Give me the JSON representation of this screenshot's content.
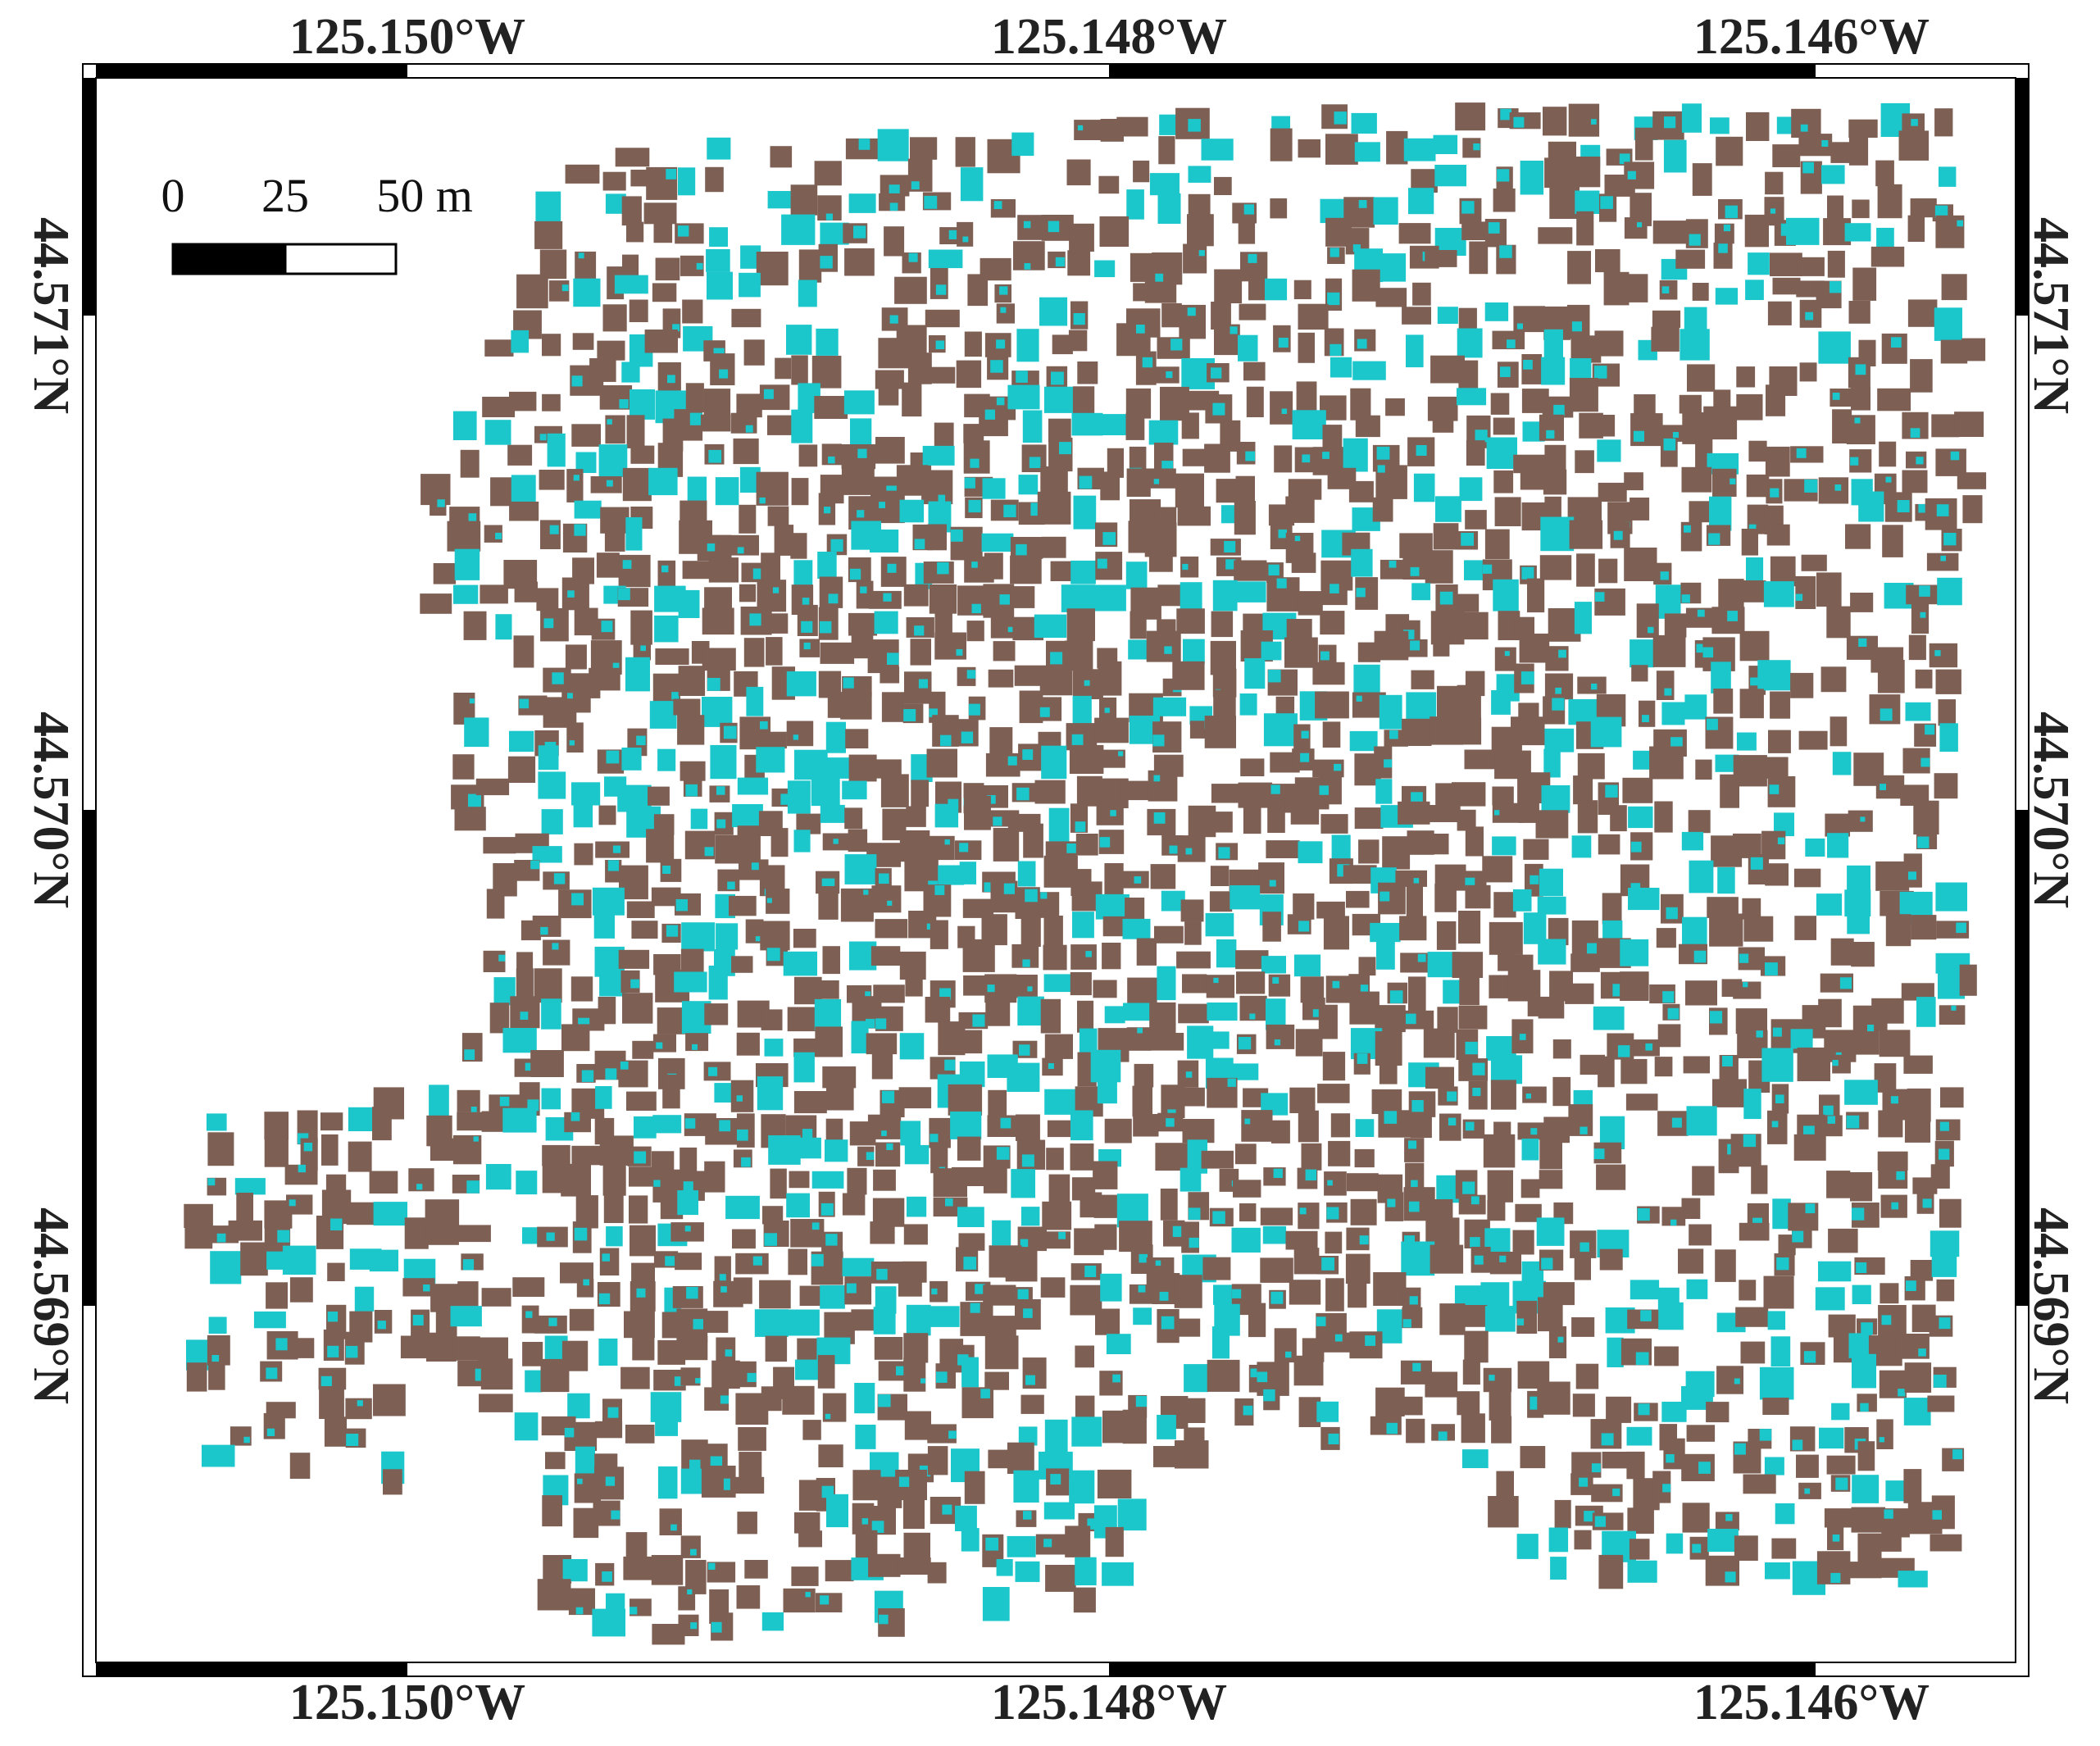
{
  "map": {
    "colors": {
      "building_brown": "#7d5f54",
      "building_cyan": "#1cc7cc",
      "frame": "#000000",
      "background": "#ffffff"
    },
    "longitude_labels": [
      "125.150°W",
      "125.148°W",
      "125.146°W"
    ],
    "latitude_labels": [
      "44.571°N",
      "44.570°N",
      "44.569°N"
    ],
    "scale_bar": {
      "labels": [
        "0",
        "25",
        "50 m"
      ]
    }
  }
}
